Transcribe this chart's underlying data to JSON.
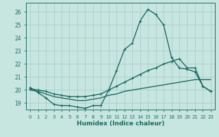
{
  "xlabel": "Humidex (Indice chaleur)",
  "background_color": "#c8e6e0",
  "grid_color": "#b8d8d0",
  "line_color": "#1a6b60",
  "x_values": [
    0,
    1,
    2,
    3,
    4,
    5,
    6,
    7,
    8,
    9,
    10,
    11,
    12,
    13,
    14,
    15,
    16,
    17,
    18,
    19,
    20,
    21,
    22,
    23
  ],
  "line1": [
    20.2,
    19.8,
    19.4,
    18.9,
    18.8,
    18.8,
    18.7,
    18.6,
    18.8,
    18.8,
    20.0,
    21.5,
    23.1,
    23.6,
    25.3,
    26.2,
    25.8,
    25.0,
    22.5,
    21.7,
    21.6,
    21.4,
    20.3,
    19.9
  ],
  "line2": [
    20.1,
    20.0,
    19.9,
    19.7,
    19.6,
    19.5,
    19.5,
    19.5,
    19.6,
    19.7,
    20.0,
    20.3,
    20.6,
    20.9,
    21.2,
    21.5,
    21.7,
    22.0,
    22.2,
    22.4,
    21.7,
    21.7,
    20.3,
    19.9
  ],
  "line3": [
    20.0,
    19.9,
    19.7,
    19.5,
    19.4,
    19.3,
    19.2,
    19.2,
    19.3,
    19.4,
    19.6,
    19.7,
    19.9,
    20.0,
    20.1,
    20.2,
    20.3,
    20.4,
    20.5,
    20.6,
    20.7,
    20.8,
    20.8,
    20.8
  ],
  "ylim": [
    18.5,
    26.7
  ],
  "yticks": [
    19,
    20,
    21,
    22,
    23,
    24,
    25,
    26
  ],
  "xlim": [
    -0.5,
    23.5
  ]
}
